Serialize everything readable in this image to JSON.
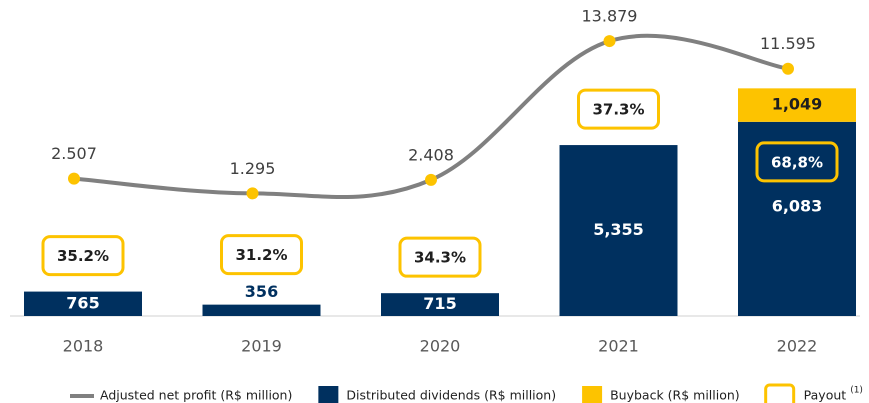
{
  "chart_data": {
    "type": "bar",
    "categories": [
      "2018",
      "2019",
      "2020",
      "2021",
      "2022"
    ],
    "ylim": [
      0,
      9900
    ],
    "y2lim": [
      -8843,
      17273
    ],
    "series": [
      {
        "name": "Adjusted net profit (R$ million)",
        "type": "line",
        "axis": "y2",
        "color": "#808080",
        "marker_color": "#fdc300",
        "values": [
          2507,
          1295,
          2408,
          13879,
          11595
        ],
        "value_labels": [
          "2.507",
          "1.295",
          "2.408",
          "13.879",
          "11.595"
        ]
      },
      {
        "name": "Distributed dividends (R$ million)",
        "type": "bar",
        "color": "#00305f",
        "values": [
          765,
          356,
          715,
          5355,
          6083
        ],
        "value_labels": [
          "765",
          "356",
          "715",
          "5,355",
          "6,083"
        ]
      },
      {
        "name": "Buyback (R$ million)",
        "type": "bar",
        "color": "#fdc300",
        "values": [
          null,
          null,
          null,
          null,
          1049
        ],
        "value_labels": [
          null,
          null,
          null,
          null,
          "1,049"
        ]
      },
      {
        "name": "Payout",
        "type": "box",
        "color": "#fdc300",
        "footnote_marker": "(1)",
        "values": [
          35.2,
          31.2,
          34.3,
          37.3,
          68.8
        ],
        "value_labels": [
          "35.2%",
          "31.2%",
          "34.3%",
          "37.3%",
          "68,8%"
        ]
      }
    ]
  }
}
